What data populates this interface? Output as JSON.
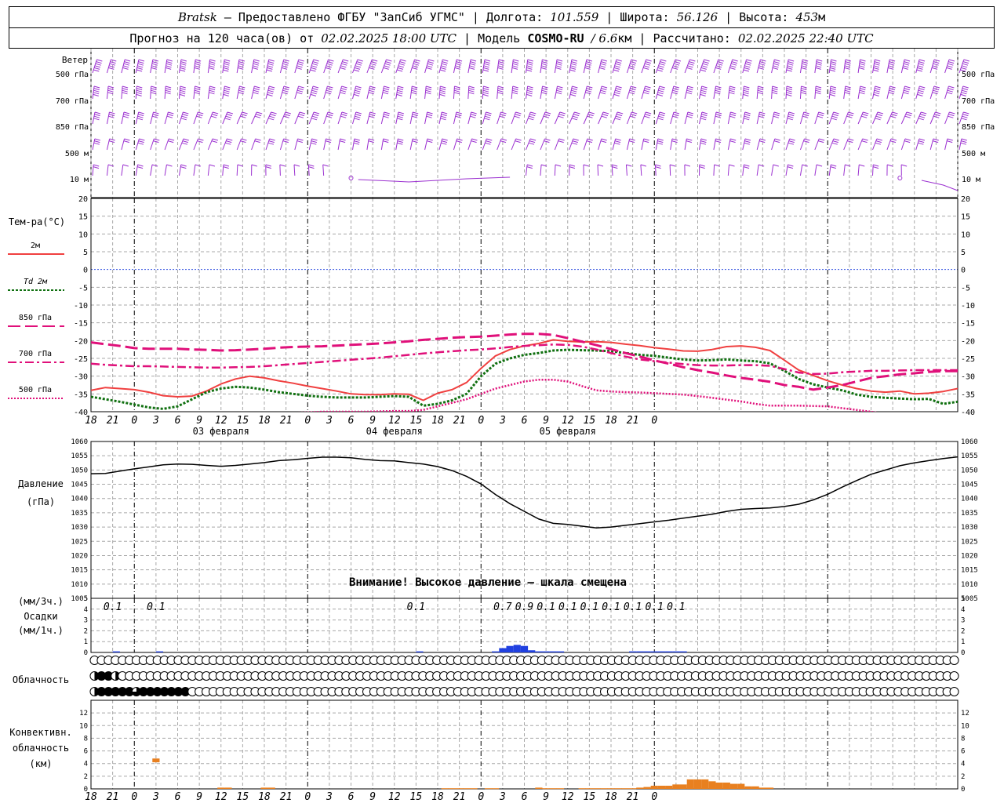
{
  "header": {
    "station": "Bratsk",
    "provider": "— Предоставлено ФГБУ \"ЗапСиб УГМС\"",
    "lon_label": "Долгота:",
    "lon_value": "101.559",
    "lat_label": "Широта:",
    "lat_value": "56.126",
    "alt_label": "Высота:",
    "alt_value": "453",
    "alt_unit": "м",
    "forecast_prefix": "Прогноз на 120 часа(ов) от",
    "forecast_start": "02.02.2025 18:00 UTC",
    "model_label": "Модель",
    "model_name": "COSMO-RU",
    "model_res": "/ 6.6",
    "model_res_unit": "км",
    "calc_label": "Рассчитано:",
    "calc_time": "02.02.2025 22:40 UTC"
  },
  "colors": {
    "wind": "#9b30d0",
    "t2m": "#f04040",
    "td2m": "#107010",
    "t850": "#e0107a",
    "pressure": "#000000",
    "precip": "#2040e0",
    "convective": "#e88020",
    "zero_line": "#3050e0",
    "grid": "#a8a8a8"
  },
  "chart_data": [
    {
      "id": "wind",
      "type": "wind-barbs",
      "title": "Ветер",
      "levels": [
        "500 гПа",
        "700 гПа",
        "850 гПа",
        "500 м",
        "10 м"
      ]
    },
    {
      "id": "temperature",
      "type": "line",
      "title": "Тем-ра(°C)",
      "ylim": [
        -40,
        20
      ],
      "yticks": [
        20,
        15,
        10,
        5,
        0,
        -5,
        -10,
        -15,
        -20,
        -25,
        -30,
        -35,
        -40
      ],
      "x_hours": [
        18,
        20,
        22,
        24,
        26,
        28,
        30,
        32,
        34,
        36,
        38,
        40,
        42,
        44,
        46,
        48,
        50,
        52,
        54,
        56,
        58,
        60,
        62,
        64,
        66,
        68,
        70,
        72,
        74,
        76,
        78,
        80,
        82,
        84,
        86,
        88,
        90,
        92,
        94,
        96,
        98,
        100,
        102,
        104,
        106,
        108,
        110,
        112,
        114,
        116,
        118,
        120,
        122,
        124,
        126,
        128,
        130,
        132,
        134,
        136,
        138
      ],
      "series": [
        {
          "name": "2м",
          "style": "solid",
          "color": "#f04040",
          "values": [
            -34,
            -33.2,
            -33.5,
            -33.8,
            -34.5,
            -35.5,
            -35.8,
            -35.6,
            -34.2,
            -32.2,
            -30.8,
            -30,
            -30.5,
            -31.3,
            -32,
            -32.8,
            -33.5,
            -34.2,
            -35,
            -35.2,
            -35.2,
            -35,
            -35.1,
            -36.8,
            -34.8,
            -33.8,
            -31.8,
            -27.8,
            -24.3,
            -22.5,
            -21.5,
            -20.8,
            -19.8,
            -20.2,
            -20.4,
            -20.3,
            -20.5,
            -21,
            -21.4,
            -22,
            -22.4,
            -22.9,
            -23,
            -22.5,
            -21.7,
            -21.5,
            -21.9,
            -22.8,
            -25.5,
            -28.3,
            -29.8,
            -31.3,
            -32.5,
            -33.5,
            -34.2,
            -34.5,
            -34.2,
            -35,
            -34.8,
            -34.3,
            -33.5
          ]
        },
        {
          "name": "Td 2м",
          "style": "dotted",
          "color": "#107010",
          "values": [
            -35.8,
            -36.5,
            -37.2,
            -38,
            -38.8,
            -39.2,
            -38.5,
            -36.5,
            -34.5,
            -33.5,
            -33,
            -33.2,
            -33.8,
            -34.5,
            -35,
            -35.5,
            -35.8,
            -36,
            -36,
            -36,
            -35.8,
            -35.6,
            -35.8,
            -38.3,
            -37.8,
            -36.8,
            -35,
            -30,
            -26.5,
            -25,
            -24,
            -23.5,
            -22.8,
            -22.6,
            -22.7,
            -22.8,
            -23,
            -23.5,
            -24,
            -24.3,
            -24.8,
            -25.3,
            -25.6,
            -25.5,
            -25.3,
            -25.6,
            -25.8,
            -26.4,
            -28.5,
            -30.8,
            -32.3,
            -33.2,
            -34,
            -35.2,
            -35.8,
            -36.1,
            -36.3,
            -36.5,
            -36.4,
            -37.8,
            -37.2
          ]
        },
        {
          "name": "850 гПа",
          "style": "dash",
          "color": "#e0107a",
          "values": [
            -20.5,
            -21,
            -21.5,
            -22.1,
            -22.3,
            -22.3,
            -22.3,
            -22.5,
            -22.6,
            -22.8,
            -22.7,
            -22.5,
            -22.3,
            -22,
            -21.8,
            -21.7,
            -21.6,
            -21.4,
            -21.2,
            -21,
            -20.8,
            -20.5,
            -20.2,
            -19.8,
            -19.5,
            -19.2,
            -19,
            -18.9,
            -18.6,
            -18.3,
            -18.1,
            -18.1,
            -18.4,
            -19.3,
            -20.3,
            -21.3,
            -22.4,
            -23.5,
            -24.5,
            -25.6,
            -26.5,
            -27.5,
            -28.3,
            -29,
            -29.8,
            -30.5,
            -31,
            -31.6,
            -32.5,
            -33,
            -33.8,
            -33.2,
            -32.5,
            -31.5,
            -30.5,
            -30,
            -29.5,
            -29.2,
            -28.8,
            -28.6,
            -28.6
          ]
        },
        {
          "name": "700 гПа",
          "style": "dash-dot",
          "color": "#e0107a",
          "values": [
            -26.5,
            -26.8,
            -27,
            -27.2,
            -27.2,
            -27.3,
            -27.4,
            -27.5,
            -27.6,
            -27.6,
            -27.5,
            -27.4,
            -27.2,
            -26.9,
            -26.6,
            -26.3,
            -26,
            -25.7,
            -25.4,
            -25.1,
            -24.8,
            -24.4,
            -24,
            -23.6,
            -23.3,
            -23,
            -22.7,
            -22.5,
            -22.2,
            -21.8,
            -21.5,
            -21.3,
            -21.1,
            -21.2,
            -21.7,
            -22.5,
            -23.5,
            -24.5,
            -25.3,
            -25.8,
            -26.2,
            -26.6,
            -26.9,
            -27,
            -27,
            -26.9,
            -26.9,
            -27.1,
            -28,
            -29,
            -29.4,
            -29.3,
            -28.9,
            -28.7,
            -28.5,
            -28.5,
            -28.4,
            -28.3,
            -28.3,
            -28.3,
            -28.3
          ]
        },
        {
          "name": "500 гПа",
          "style": "dotted-fine",
          "color": "#e0107a",
          "values": [
            -40.5,
            -40.5,
            -40.6,
            -40.6,
            -40.6,
            -40.6,
            -40.6,
            -40.6,
            -40.7,
            -40.7,
            -40.7,
            -40.6,
            -40.5,
            -40.5,
            -40.3,
            -40.2,
            -40,
            -40,
            -40,
            -40,
            -39.9,
            -39.8,
            -39.8,
            -39.5,
            -38.5,
            -37.5,
            -36.5,
            -35,
            -33.5,
            -32.5,
            -31.5,
            -31,
            -31,
            -31.5,
            -32.8,
            -34,
            -34.3,
            -34.5,
            -34.6,
            -34.8,
            -35,
            -35.2,
            -35.6,
            -36.1,
            -36.6,
            -37.1,
            -37.8,
            -38.3,
            -38.3,
            -38.3,
            -38.4,
            -38.5,
            -39,
            -39.5,
            -40,
            -40.6,
            -40.9,
            -41,
            -41,
            -41,
            -41
          ]
        }
      ]
    },
    {
      "id": "pressure",
      "type": "line",
      "title": "Давление",
      "ylabel": "(гПа)",
      "ylim": [
        1005,
        1060
      ],
      "yticks": [
        1060,
        1055,
        1050,
        1045,
        1040,
        1035,
        1030,
        1025,
        1020,
        1015,
        1010,
        1005
      ],
      "annotation": "Внимание! Высокое давление – шкала смещена",
      "x_hours": [
        18,
        20,
        22,
        24,
        26,
        28,
        30,
        32,
        34,
        36,
        38,
        40,
        42,
        44,
        46,
        48,
        50,
        52,
        54,
        56,
        58,
        60,
        62,
        64,
        66,
        68,
        70,
        72,
        74,
        76,
        78,
        80,
        82,
        84,
        86,
        88,
        90,
        92,
        94,
        96,
        98,
        100,
        102,
        104,
        106,
        108,
        110,
        112,
        114,
        116,
        118,
        120,
        122,
        124,
        126,
        128,
        130,
        132,
        134,
        136,
        138
      ],
      "values": [
        1048.7,
        1048.8,
        1049.6,
        1050.4,
        1051.1,
        1051.8,
        1052.1,
        1052.0,
        1051.6,
        1051.3,
        1051.6,
        1052.1,
        1052.6,
        1053.3,
        1053.6,
        1054.1,
        1054.5,
        1054.5,
        1054.3,
        1053.7,
        1053.3,
        1053.2,
        1052.6,
        1052.1,
        1051.2,
        1049.8,
        1047.8,
        1045.1,
        1041.4,
        1038.2,
        1035.5,
        1032.8,
        1031.3,
        1030.9,
        1030.3,
        1029.7,
        1030.0,
        1030.6,
        1031.2,
        1031.8,
        1032.4,
        1033.1,
        1033.8,
        1034.5,
        1035.5,
        1036.2,
        1036.5,
        1036.7,
        1037.2,
        1038.0,
        1039.5,
        1041.5,
        1044.0,
        1046.3,
        1048.5,
        1050.0,
        1051.5,
        1052.5,
        1053.3,
        1054.0,
        1054.6
      ]
    },
    {
      "id": "precip",
      "type": "bar",
      "title": "Осадки",
      "ylabel_3h": "(мм/3ч.)",
      "ylabel_1h": "(мм/1ч.)",
      "ylim": [
        0,
        5
      ],
      "yticks": [
        5,
        4,
        3,
        2,
        1,
        0
      ],
      "labels_3h": [
        {
          "hour": 21,
          "text": "0.1"
        },
        {
          "hour": 27,
          "text": "0.1"
        },
        {
          "hour": 63,
          "text": "0.1"
        },
        {
          "hour": 75,
          "text": "0.7"
        },
        {
          "hour": 78,
          "text": "0.9"
        },
        {
          "hour": 81,
          "text": "0.1"
        },
        {
          "hour": 84,
          "text": "0.1"
        },
        {
          "hour": 87,
          "text": "0.1"
        },
        {
          "hour": 90,
          "text": "0.1"
        },
        {
          "hour": 93,
          "text": "0.1"
        },
        {
          "hour": 96,
          "text": "0.1"
        },
        {
          "hour": 99,
          "text": "0.1"
        }
      ],
      "bars_1h": [
        {
          "hour": 21.5,
          "value": 0.1
        },
        {
          "hour": 27.5,
          "value": 0.1
        },
        {
          "hour": 63.5,
          "value": 0.1
        },
        {
          "hour": 74,
          "value": 0.1
        },
        {
          "hour": 75,
          "value": 0.4
        },
        {
          "hour": 76,
          "value": 0.6
        },
        {
          "hour": 77,
          "value": 0.7
        },
        {
          "hour": 78,
          "value": 0.6
        },
        {
          "hour": 79,
          "value": 0.2
        },
        {
          "hour": 80,
          "value": 0.1
        },
        {
          "hour": 81,
          "value": 0.1
        },
        {
          "hour": 82,
          "value": 0.1
        },
        {
          "hour": 83,
          "value": 0.1
        },
        {
          "hour": 93,
          "value": 0.1
        },
        {
          "hour": 94,
          "value": 0.1
        },
        {
          "hour": 95,
          "value": 0.1
        },
        {
          "hour": 96,
          "value": 0.1
        },
        {
          "hour": 97,
          "value": 0.1
        },
        {
          "hour": 98,
          "value": 0.1
        },
        {
          "hour": 99,
          "value": 0.1
        },
        {
          "hour": 100,
          "value": 0.1
        }
      ]
    },
    {
      "id": "cloud",
      "type": "table",
      "title": "Облачность",
      "rows_okta": [
        "0000000000000000000000000000000000000000000000000000000000000000000000000000000000000000000000000000000000000000000000000000",
        "4884000000000000000000000000000000000000000000000000000000000000000000000000000000000000000000000000000000000000000000000000",
        "4888886888888800000000000000000000000000000000000000000000000000000000000000000000000000000000000000000000000000000000000000"
      ]
    },
    {
      "id": "convective",
      "type": "bar",
      "title": "Конвективн.",
      "ylabel": "облачность",
      "yunit": "(км)",
      "ylim": [
        0,
        14
      ],
      "yticks": [
        12,
        10,
        8,
        6,
        4,
        2,
        0
      ],
      "bars": [
        {
          "hour": 27,
          "bottom": 4.2,
          "top": 4.8
        },
        {
          "hour": 36,
          "bottom": 0,
          "top": 0.2
        },
        {
          "hour": 37,
          "bottom": 0,
          "top": 0.2
        },
        {
          "hour": 42,
          "bottom": 0,
          "top": 0.2
        },
        {
          "hour": 43,
          "bottom": 0,
          "top": 0.2
        },
        {
          "hour": 67,
          "bottom": 0,
          "top": 0.1
        },
        {
          "hour": 68,
          "bottom": 0,
          "top": 0.1
        },
        {
          "hour": 69,
          "bottom": 0,
          "top": 0.1
        },
        {
          "hour": 70,
          "bottom": 0,
          "top": 0.1
        },
        {
          "hour": 71,
          "bottom": 0,
          "top": 0.1
        },
        {
          "hour": 73,
          "bottom": 0,
          "top": 0.1
        },
        {
          "hour": 74,
          "bottom": 0,
          "top": 0.1
        },
        {
          "hour": 80,
          "bottom": 0,
          "top": 0.2
        },
        {
          "hour": 81,
          "bottom": 0,
          "top": 0.1
        },
        {
          "hour": 82,
          "bottom": 0,
          "top": 0.1
        },
        {
          "hour": 83,
          "bottom": 0,
          "top": 0.1
        },
        {
          "hour": 86,
          "bottom": 0,
          "top": 0.1
        },
        {
          "hour": 87,
          "bottom": 0,
          "top": 0.1
        },
        {
          "hour": 88,
          "bottom": 0,
          "top": 0.1
        },
        {
          "hour": 89,
          "bottom": 0,
          "top": 0.1
        },
        {
          "hour": 90,
          "bottom": 0,
          "top": 0.1
        },
        {
          "hour": 91,
          "bottom": 0,
          "top": 0.1
        },
        {
          "hour": 92,
          "bottom": 0,
          "top": 0.1
        },
        {
          "hour": 93,
          "bottom": 0,
          "top": 0.1
        },
        {
          "hour": 94,
          "bottom": 0,
          "top": 0.2
        },
        {
          "hour": 95,
          "bottom": 0,
          "top": 0.3
        },
        {
          "hour": 96,
          "bottom": 0,
          "top": 0.5
        },
        {
          "hour": 97,
          "bottom": 0,
          "top": 0.5
        },
        {
          "hour": 98,
          "bottom": 0,
          "top": 0.5
        },
        {
          "hour": 99,
          "bottom": 0,
          "top": 0.7
        },
        {
          "hour": 100,
          "bottom": 0,
          "top": 0.7
        },
        {
          "hour": 101,
          "bottom": 0,
          "top": 1.5
        },
        {
          "hour": 102,
          "bottom": 0,
          "top": 1.5
        },
        {
          "hour": 103,
          "bottom": 0,
          "top": 1.5
        },
        {
          "hour": 104,
          "bottom": 0,
          "top": 1.2
        },
        {
          "hour": 105,
          "bottom": 0,
          "top": 1.0
        },
        {
          "hour": 106,
          "bottom": 0,
          "top": 1.0
        },
        {
          "hour": 107,
          "bottom": 0,
          "top": 0.8
        },
        {
          "hour": 108,
          "bottom": 0,
          "top": 0.8
        },
        {
          "hour": 109,
          "bottom": 0,
          "top": 0.4
        },
        {
          "hour": 110,
          "bottom": 0,
          "top": 0.4
        },
        {
          "hour": 111,
          "bottom": 0,
          "top": 0.2
        },
        {
          "hour": 112,
          "bottom": 0,
          "top": 0.2
        }
      ]
    },
    {
      "id": "time-axis",
      "x_tick_labels": [
        "18",
        "21",
        "0",
        "3",
        "6",
        "9",
        "12",
        "15",
        "18",
        "21",
        "0",
        "3",
        "6",
        "9",
        "12",
        "15",
        "18",
        "21",
        "0",
        "3",
        "6",
        "9",
        "12",
        "15",
        "18",
        "21",
        "0"
      ],
      "days": [
        {
          "label": "03 февраля",
          "hour": 36
        },
        {
          "label": "04 февраля",
          "hour": 60
        },
        {
          "label": "05 февраля",
          "hour": 84
        }
      ]
    }
  ]
}
